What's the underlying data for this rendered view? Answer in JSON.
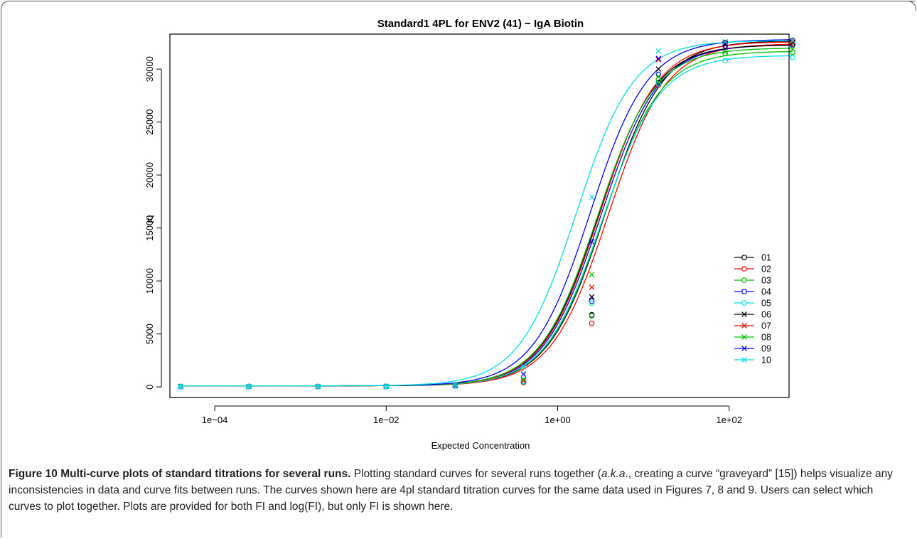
{
  "chart_data": {
    "type": "line",
    "title": "Standard1 4PL for ENV2 (41) − IgA Biotin",
    "xlabel": "Expected Concentration",
    "ylabel": "FI",
    "x_scale": "log",
    "xlim": [
      3e-05,
      500
    ],
    "ylim": [
      -1000,
      33300
    ],
    "x_ticks": [
      0.0001,
      0.01,
      1,
      100
    ],
    "x_tick_labels": [
      "1e−04",
      "1e−02",
      "1e+00",
      "1e+02"
    ],
    "y_ticks": [
      0,
      5000,
      10000,
      15000,
      20000,
      25000,
      30000
    ],
    "y_tick_labels": [
      "0",
      "5000",
      "10000",
      "15000",
      "20000",
      "25000",
      "30000"
    ],
    "x_points": [
      4e-05,
      0.00025,
      0.0016,
      0.01,
      0.064,
      0.4,
      2.5,
      15,
      90,
      550
    ],
    "legend_position": "right",
    "series": [
      {
        "name": "01",
        "color": "#000000",
        "marker": "circle",
        "min": 100,
        "max": 32700,
        "ec50": 3.6,
        "slope": 1.3,
        "y": [
          30,
          30,
          30,
          40,
          90,
          450,
          6800,
          28700,
          32500,
          32700
        ]
      },
      {
        "name": "02",
        "color": "#ff0000",
        "marker": "circle",
        "min": 100,
        "max": 32400,
        "ec50": 3.9,
        "slope": 1.3,
        "y": [
          30,
          30,
          30,
          40,
          90,
          420,
          6000,
          28500,
          32200,
          32400
        ]
      },
      {
        "name": "03",
        "color": "#00c000",
        "marker": "circle",
        "min": 100,
        "max": 31700,
        "ec50": 3.4,
        "slope": 1.3,
        "y": [
          30,
          30,
          30,
          40,
          100,
          480,
          6700,
          29000,
          31500,
          31600
        ]
      },
      {
        "name": "04",
        "color": "#0000ff",
        "marker": "circle",
        "min": 100,
        "max": 32300,
        "ec50": 3.2,
        "slope": 1.3,
        "y": [
          30,
          30,
          30,
          40,
          100,
          520,
          8100,
          29500,
          32200,
          32300
        ]
      },
      {
        "name": "05",
        "color": "#00e0e0",
        "marker": "circle",
        "min": 100,
        "max": 31300,
        "ec50": 3.3,
        "slope": 1.3,
        "y": [
          30,
          30,
          30,
          40,
          100,
          500,
          7900,
          28600,
          30800,
          31100
        ]
      },
      {
        "name": "06",
        "color": "#000000",
        "marker": "x",
        "min": 100,
        "max": 32300,
        "ec50": 3.0,
        "slope": 1.3,
        "y": [
          30,
          30,
          30,
          40,
          110,
          600,
          8500,
          30000,
          32300,
          32500
        ]
      },
      {
        "name": "07",
        "color": "#ff0000",
        "marker": "x",
        "min": 100,
        "max": 32600,
        "ec50": 3.1,
        "slope": 1.3,
        "y": [
          30,
          30,
          30,
          40,
          110,
          580,
          9400,
          30900,
          32500,
          32600
        ]
      },
      {
        "name": "08",
        "color": "#00c000",
        "marker": "x",
        "min": 100,
        "max": 32000,
        "ec50": 2.9,
        "slope": 1.3,
        "y": [
          30,
          30,
          30,
          40,
          120,
          700,
          10600,
          29300,
          31600,
          31900
        ]
      },
      {
        "name": "09",
        "color": "#0000ff",
        "marker": "x",
        "min": 100,
        "max": 32800,
        "ec50": 2.4,
        "slope": 1.3,
        "y": [
          30,
          30,
          30,
          40,
          140,
          1200,
          13700,
          31000,
          32400,
          32700
        ]
      },
      {
        "name": "10",
        "color": "#00e0e0",
        "marker": "x",
        "min": 100,
        "max": 32700,
        "ec50": 1.65,
        "slope": 1.3,
        "y": [
          30,
          30,
          30,
          40,
          180,
          1900,
          17900,
          31700,
          32600,
          32700
        ]
      }
    ]
  },
  "caption": {
    "title": "Figure 10 Multi-curve plots of standard titrations for several runs.",
    "text_1": " Plotting standard curves for several runs together (",
    "italic": "a.k.a",
    "text_2": "., creating a curve “graveyard” [15]) helps visualize any inconsistencies in data and curve fits between runs. The curves shown here are 4pl standard titration curves for the same data used in Figures 7, 8 and 9. Users can select which curves to plot together. Plots are provided for both FI and log(FI), but only FI is shown here."
  }
}
